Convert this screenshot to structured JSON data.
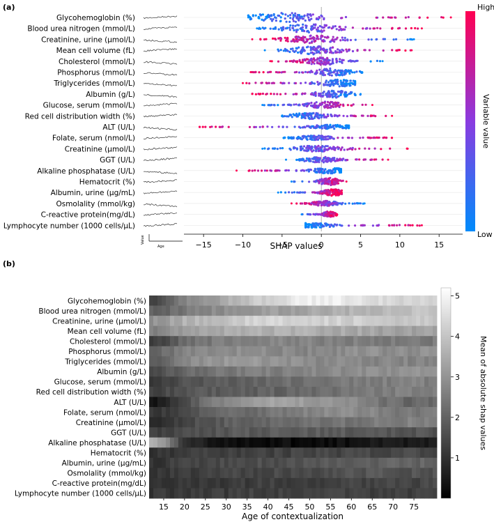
{
  "colors": {
    "high": "#ff0052",
    "low": "#008bfb",
    "background": "#ffffff"
  },
  "chart_data": [
    {
      "panel": "(a)",
      "type": "scatter",
      "subtype": "violin-beeswarm",
      "xlabel": "SHAP values",
      "xlim": [
        -17.5,
        18.0
      ],
      "xticks": [
        -15,
        -10,
        -5,
        0,
        5,
        10,
        15
      ],
      "colorbar": {
        "label": "Variable value",
        "high": "High",
        "low": "Low"
      },
      "inset_axis": {
        "ylabel": "Value",
        "xlabel": "Age"
      },
      "features": [
        {
          "name": "Glycohemoglobin (%)",
          "min": -9.3,
          "max": 16.5,
          "peak": -4.5,
          "spread": 1.0,
          "corr": 1
        },
        {
          "name": "Blood urea nitrogen (mmol/L)",
          "min": -8.2,
          "max": 12.8,
          "peak": -1.5,
          "spread": 0.9,
          "corr": 1
        },
        {
          "name": "Creatinine, urine (μmol/L)",
          "min": -8.8,
          "max": 11.8,
          "peak": -1.0,
          "spread": 0.85,
          "corr": -1
        },
        {
          "name": "Mean cell volume (fL)",
          "min": -7.2,
          "max": 11.5,
          "peak": -0.5,
          "spread": 0.9,
          "corr": 1
        },
        {
          "name": "Cholesterol (mmol/L)",
          "min": -6.5,
          "max": 7.8,
          "peak": 0.2,
          "spread": 0.8,
          "corr": -1
        },
        {
          "name": "Phosphorus (mmol/L)",
          "min": -9.0,
          "max": 5.2,
          "peak": 1.5,
          "spread": 0.8,
          "corr": -1
        },
        {
          "name": "Triglycerides (mmol/L)",
          "min": -10.0,
          "max": 4.3,
          "peak": 2.2,
          "spread": 0.75,
          "corr": -1
        },
        {
          "name": "Albumin (g/L)",
          "min": -8.8,
          "max": 5.0,
          "peak": 1.5,
          "spread": 0.8,
          "corr": -1
        },
        {
          "name": "Glucose, serum (mmol/L)",
          "min": -7.5,
          "max": 6.5,
          "peak": 0.5,
          "spread": 0.7,
          "corr": 1
        },
        {
          "name": "Red cell distribution width (%)",
          "min": -5.0,
          "max": 9.0,
          "peak": -1.5,
          "spread": 0.7,
          "corr": 1
        },
        {
          "name": "ALT (U/L)",
          "min": -15.5,
          "max": 3.5,
          "peak": 1.0,
          "spread": 0.45,
          "corr": -1
        },
        {
          "name": "Folate, serum (nmol/L)",
          "min": -4.8,
          "max": 9.0,
          "peak": -1.0,
          "spread": 0.5,
          "corr": 1
        },
        {
          "name": "Creatinine (μmol/L)",
          "min": -7.5,
          "max": 11.0,
          "peak": -0.5,
          "spread": 0.65,
          "corr": 1
        },
        {
          "name": "GGT (U/L)",
          "min": -4.5,
          "max": 8.5,
          "peak": 0.0,
          "spread": 0.6,
          "corr": 1
        },
        {
          "name": "Alkaline phosphatase (U/L)",
          "min": -10.8,
          "max": 2.5,
          "peak": 1.0,
          "spread": 0.6,
          "corr": -1
        },
        {
          "name": "Hematocrit (%)",
          "min": -3.8,
          "max": 3.2,
          "peak": 1.0,
          "spread": 0.85,
          "corr": 1
        },
        {
          "name": "Albumin, urine (μg/mL)",
          "min": -5.5,
          "max": 2.6,
          "peak": 1.5,
          "spread": 0.7,
          "corr": 1
        },
        {
          "name": "Osmolality (mmol/kg)",
          "min": -3.8,
          "max": 5.5,
          "peak": 0.5,
          "spread": 0.55,
          "corr": -1
        },
        {
          "name": "C-reactive protein(mg/dL)",
          "min": -2.5,
          "max": 2.0,
          "peak": 1.0,
          "spread": 0.65,
          "corr": 1
        },
        {
          "name": "Lymphocyte number (1000 cells/μL)",
          "min": -2.0,
          "max": 12.8,
          "peak": -1.0,
          "spread": 0.55,
          "corr": 1
        }
      ]
    },
    {
      "panel": "(b)",
      "type": "heatmap",
      "xlabel": "Age of contextualization",
      "x_start": 12,
      "x_end": 80,
      "xticks": [
        15,
        20,
        25,
        30,
        35,
        40,
        45,
        50,
        55,
        60,
        65,
        70,
        75
      ],
      "colorbar": {
        "label": "Mean of absolute shap values",
        "min": 0,
        "max": 5.2,
        "ticks": [
          1,
          2,
          3,
          4,
          5
        ]
      },
      "rows": [
        {
          "name": "Glycohemoglobin (%)",
          "v": [
            1.3,
            2.6,
            3.3,
            3.8,
            4.4,
            4.8,
            4.9,
            4.7,
            4.3
          ]
        },
        {
          "name": "Blood urea nitrogen (mmol/L)",
          "v": [
            2.0,
            2.4,
            2.8,
            3.0,
            3.2,
            3.3,
            3.5,
            3.7,
            3.9
          ]
        },
        {
          "name": "Creatinine, urine (μmol/L)",
          "v": [
            3.0,
            3.6,
            3.9,
            4.2,
            4.3,
            4.4,
            4.3,
            4.2,
            4.0
          ]
        },
        {
          "name": "Mean cell volume (fL)",
          "v": [
            2.7,
            3.2,
            3.4,
            3.5,
            3.6,
            3.6,
            3.5,
            3.4,
            3.3
          ]
        },
        {
          "name": "Cholesterol (mmol/L)",
          "v": [
            1.2,
            2.2,
            2.5,
            2.6,
            2.7,
            2.7,
            2.6,
            2.6,
            2.5
          ]
        },
        {
          "name": "Phosphorus (mmol/L)",
          "v": [
            2.0,
            2.6,
            2.8,
            2.9,
            2.8,
            2.7,
            2.8,
            2.9,
            2.9
          ]
        },
        {
          "name": "Triglycerides (mmol/L)",
          "v": [
            1.9,
            2.7,
            3.1,
            3.1,
            3.0,
            2.9,
            2.8,
            2.7,
            2.7
          ]
        },
        {
          "name": "Albumin (g/L)",
          "v": [
            1.6,
            2.1,
            2.4,
            2.5,
            2.6,
            2.7,
            2.8,
            2.9,
            3.0
          ]
        },
        {
          "name": "Glucose, serum (mmol/L)",
          "v": [
            1.0,
            1.6,
            1.9,
            2.0,
            2.1,
            2.3,
            2.4,
            2.5,
            2.6
          ]
        },
        {
          "name": "Red cell distribution width (%)",
          "v": [
            1.4,
            1.7,
            1.8,
            1.9,
            2.0,
            2.1,
            2.2,
            2.4,
            2.6
          ]
        },
        {
          "name": "ALT (U/L)",
          "v": [
            0.5,
            1.6,
            2.6,
            3.0,
            3.3,
            3.2,
            3.0,
            2.7,
            2.1
          ]
        },
        {
          "name": "Folate, serum (nmol/L)",
          "v": [
            1.0,
            1.6,
            2.1,
            2.2,
            2.4,
            2.6,
            2.8,
            2.8,
            2.5
          ]
        },
        {
          "name": "Creatinine (μmol/L)",
          "v": [
            0.7,
            1.4,
            1.8,
            2.0,
            2.1,
            2.2,
            2.3,
            2.4,
            2.6
          ]
        },
        {
          "name": "GGT (U/L)",
          "v": [
            1.2,
            1.5,
            1.7,
            1.8,
            1.8,
            1.9,
            1.9,
            1.8,
            1.7
          ]
        },
        {
          "name": "Alkaline phosphatase (U/L)",
          "v": [
            3.7,
            1.1,
            0.35,
            0.2,
            0.2,
            0.25,
            0.3,
            0.4,
            0.5
          ]
        },
        {
          "name": "Hematocrit (%)",
          "v": [
            1.0,
            1.2,
            1.3,
            1.3,
            1.3,
            1.4,
            1.4,
            1.4,
            1.5
          ]
        },
        {
          "name": "Albumin, urine (μg/mL)",
          "v": [
            1.1,
            1.3,
            1.5,
            1.6,
            1.6,
            1.7,
            1.8,
            1.9,
            2.0
          ]
        },
        {
          "name": "Osmolality (mmol/kg)",
          "v": [
            1.0,
            1.2,
            1.3,
            1.4,
            1.5,
            1.5,
            1.6,
            1.7,
            1.7
          ]
        },
        {
          "name": "C-reactive protein(mg/dL)",
          "v": [
            1.0,
            1.1,
            1.2,
            1.2,
            1.3,
            1.3,
            1.3,
            1.4,
            1.4
          ]
        },
        {
          "name": "Lymphocyte number (1000 cells/μL)",
          "v": [
            1.1,
            1.2,
            1.2,
            1.3,
            1.3,
            1.3,
            1.3,
            1.3,
            1.3
          ]
        }
      ]
    }
  ]
}
